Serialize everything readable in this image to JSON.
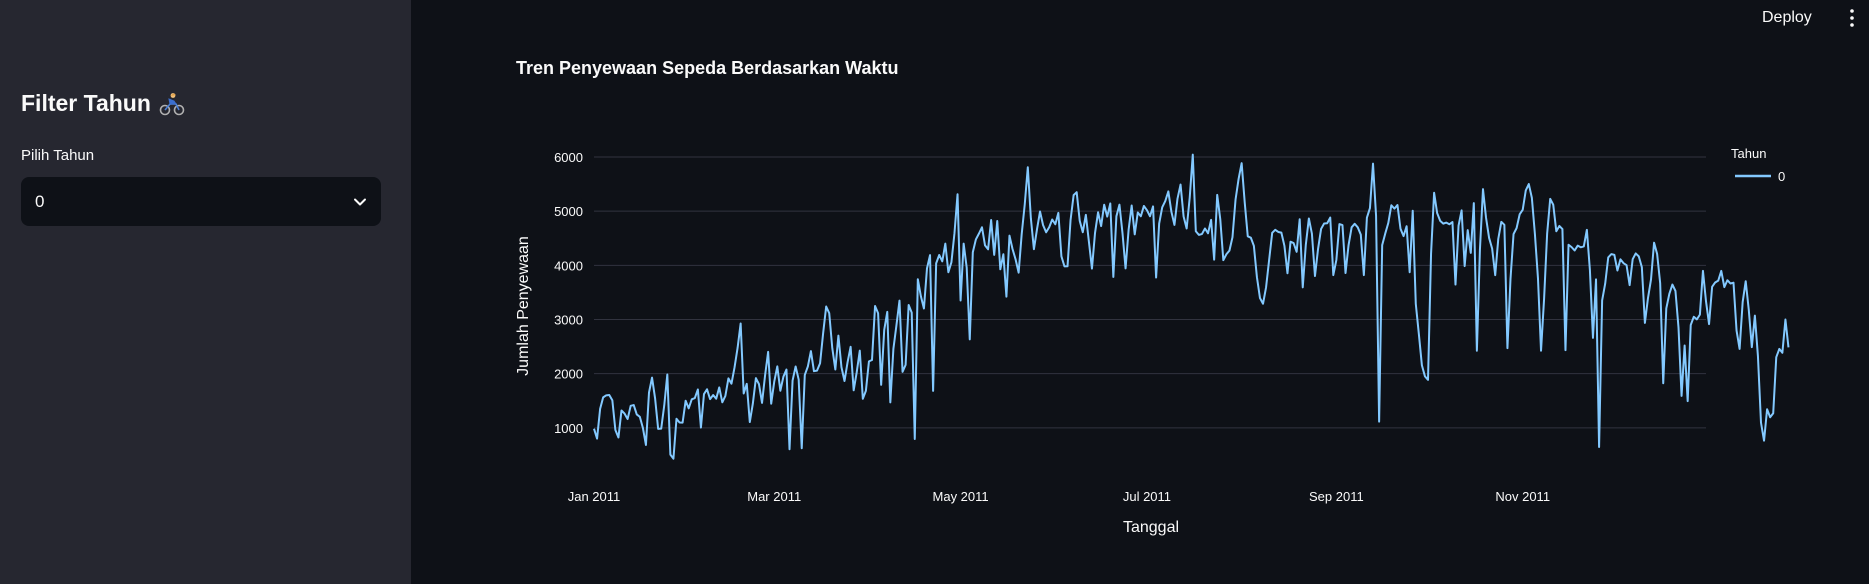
{
  "header": {
    "deploy_label": "Deploy",
    "menu_icon": "vertical-dots-icon"
  },
  "sidebar": {
    "title": "Filter Tahun",
    "title_icon": "bicycle-rider-icon",
    "select_label": "Pilih Tahun",
    "select_value": "0",
    "select_icon": "chevron-down-icon"
  },
  "colors": {
    "sidebar_bg": "#262730",
    "main_bg": "#0e1117",
    "series": "#83c9ff",
    "grid": "#31333f"
  },
  "chart_data": {
    "type": "line",
    "title": "Tren Penyewaan Sepeda Berdasarkan Waktu",
    "xlabel": "Tanggal",
    "ylabel": "Jumlah Penyewaan",
    "x_ticks": [
      "Jan 2011",
      "Mar 2011",
      "May 2011",
      "Jul 2011",
      "Sep 2011",
      "Nov 2011"
    ],
    "y_ticks": [
      1000,
      2000,
      3000,
      4000,
      5000,
      6000
    ],
    "ylim": [
      0,
      6000
    ],
    "x_range": [
      "2011-01-01",
      "2011-12-31"
    ],
    "legend": {
      "title": "Tahun",
      "position": "top-right"
    },
    "grid": true,
    "series": [
      {
        "name": "0",
        "x_start": "2011-01-01",
        "x_step_days": 1,
        "values": [
          985,
          801,
          1349,
          1562,
          1600,
          1606,
          1510,
          959,
          822,
          1321,
          1263,
          1162,
          1406,
          1421,
          1248,
          1204,
          1000,
          683,
          1650,
          1927,
          1543,
          981,
          986,
          1416,
          1985,
          506,
          431,
          1167,
          1098,
          1096,
          1501,
          1360,
          1526,
          1550,
          1708,
          1005,
          1623,
          1712,
          1530,
          1605,
          1538,
          1746,
          1472,
          1589,
          1913,
          1815,
          2115,
          2475,
          2927,
          1635,
          1812,
          1107,
          1450,
          1917,
          1807,
          1461,
          1969,
          2402,
          1446,
          1851,
          2134,
          1685,
          1944,
          2077,
          605,
          1872,
          2133,
          1891,
          623,
          1977,
          2132,
          2417,
          2046,
          2056,
          2192,
          2744,
          3239,
          3117,
          2471,
          2077,
          2703,
          2121,
          1865,
          2210,
          2496,
          1693,
          2028,
          2425,
          1536,
          1685,
          2227,
          2252,
          3249,
          3115,
          1795,
          2808,
          3141,
          1471,
          2455,
          2895,
          3348,
          2034,
          2162,
          3267,
          3126,
          795,
          3744,
          3429,
          3204,
          3944,
          4189,
          1683,
          4036,
          4191,
          4073,
          4400,
          3872,
          4058,
          4595,
          5312,
          3351,
          4401,
          3958,
          2633,
          4241,
          4478,
          4585,
          4703,
          4368,
          4296,
          4836,
          4193,
          4818,
          3927,
          4204,
          3422,
          4548,
          4302,
          4110,
          3866,
          4575,
          5127,
          5810,
          4869,
          4298,
          4663,
          4994,
          4742,
          4610,
          4703,
          4846,
          4758,
          4968,
          4166,
          3981,
          3982,
          4838,
          5296,
          5350,
          4821,
          4612,
          4932,
          4437,
          3940,
          4596,
          4979,
          4725,
          5119,
          4900,
          5143,
          3786,
          4905,
          5120,
          4592,
          3944,
          4659,
          5105,
          4572,
          4975,
          4906,
          5096,
          5018,
          4906,
          5087,
          3775,
          4771,
          5071,
          5187,
          5364,
          4990,
          4747,
          5231,
          5491,
          4902,
          4681,
          5249,
          6043,
          4629,
          4562,
          4577,
          4680,
          4591,
          4840,
          4105,
          5301,
          4854,
          4096,
          4204,
          4271,
          4520,
          5213,
          5595,
          5886,
          5166,
          4536,
          4511,
          4360,
          3782,
          3396,
          3291,
          3597,
          4102,
          4601,
          4656,
          4616,
          4604,
          4360,
          3854,
          4436,
          4412,
          4250,
          4851,
          3594,
          4378,
          4865,
          4585,
          3802,
          4298,
          4672,
          4773,
          4777,
          4882,
          3820,
          4098,
          4761,
          4744,
          3858,
          4375,
          4702,
          4766,
          4702,
          4567,
          3820,
          4879,
          5058,
          5877,
          4911,
          1115,
          4374,
          4586,
          4781,
          5109,
          5047,
          5113,
          4674,
          4540,
          4722,
          3873,
          5008,
          3290,
          2734,
          2155,
          1950,
          1886,
          4212,
          5339,
          4964,
          4820,
          4770,
          4789,
          4758,
          4800,
          3645,
          4733,
          5014,
          3986,
          4649,
          4230,
          5149,
          2424,
          4292,
          5406,
          4879,
          4506,
          4309,
          3818,
          4486,
          4803,
          4748,
          2471,
          3744,
          4577,
          4687,
          4941,
          5024,
          5382,
          5500,
          5245,
          4575,
          3757,
          2424,
          3385,
          4587,
          5227,
          5119,
          4630,
          4727,
          4670,
          2434,
          4380,
          4336,
          4274,
          4363,
          4333,
          4349,
          4655,
          3910,
          2661,
          3741,
          647,
          3351,
          3663,
          4146,
          4207,
          4194,
          3905,
          4111,
          4040,
          4002,
          3634,
          4113,
          4220,
          4165,
          3966,
          2937,
          3392,
          3740,
          4418,
          4212,
          3669,
          1823,
          3204,
          3474,
          3645,
          3527,
          2851,
          1589,
          2520,
          1494,
          2898,
          3050,
          3002,
          3090,
          3897,
          3336,
          2915,
          3603,
          3684,
          3717,
          3897,
          3598,
          3725,
          3665,
          3680,
          2795,
          2457,
          3322,
          3707,
          3180,
          2489,
          3071,
          2324,
          1096,
          763,
          1344,
          1195,
          1269,
          2304,
          2457,
          2386,
          2999,
          2485
        ]
      }
    ]
  }
}
